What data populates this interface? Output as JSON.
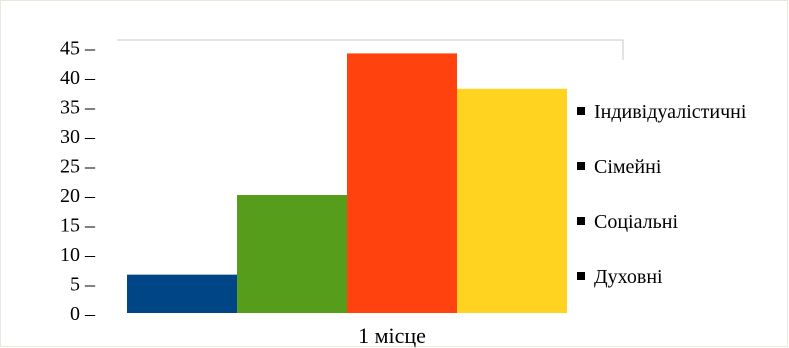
{
  "chart_data": {
    "type": "bar",
    "categories": [
      "1 місце"
    ],
    "series": [
      {
        "name": "Індивідуалістичні",
        "values": [
          6.5
        ],
        "color": "#004586"
      },
      {
        "name": "Сімейні",
        "values": [
          20
        ],
        "color": "#579D1C"
      },
      {
        "name": "Соціальні",
        "values": [
          44
        ],
        "color": "#FF420E"
      },
      {
        "name": "Духовні",
        "values": [
          38
        ],
        "color": "#FFD320"
      }
    ],
    "yticks": [
      "0 –",
      "5 –",
      "10 –",
      "15 –",
      "20 –",
      "25 –",
      "30 –",
      "35 –",
      "40 –",
      "45 –"
    ],
    "ylim": [
      0,
      45
    ],
    "grid": false,
    "legend_position": "right"
  }
}
